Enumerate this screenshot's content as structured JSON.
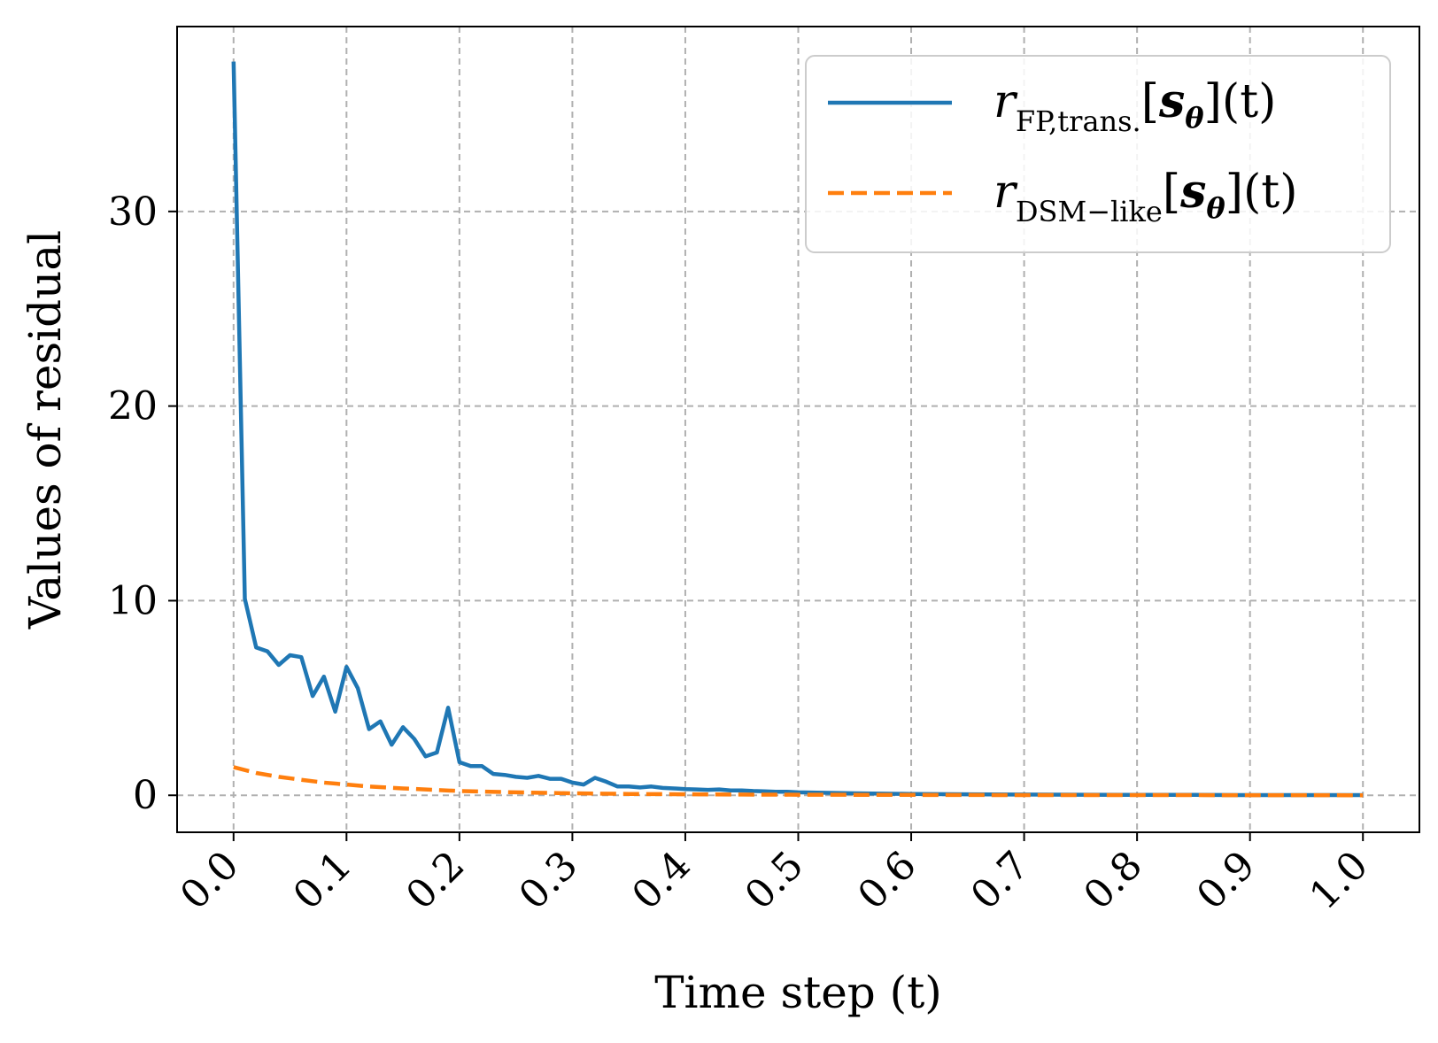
{
  "chart_data": {
    "type": "line",
    "xlabel": "Time step (t)",
    "ylabel": "Values of residual",
    "xlim": [
      -0.05,
      1.05
    ],
    "ylim": [
      -1.9,
      39.5
    ],
    "xticks": [
      0.0,
      0.1,
      0.2,
      0.3,
      0.4,
      0.5,
      0.6,
      0.7,
      0.8,
      0.9,
      1.0
    ],
    "xtick_labels": [
      "0.0",
      "0.1",
      "0.2",
      "0.3",
      "0.4",
      "0.5",
      "0.6",
      "0.7",
      "0.8",
      "0.9",
      "1.0"
    ],
    "yticks": [
      0,
      10,
      20,
      30
    ],
    "ytick_labels": [
      "0",
      "10",
      "20",
      "30"
    ],
    "grid": true,
    "legend_position": "top-right",
    "series": [
      {
        "name": "r_{FP,trans.}[s_θ](t)",
        "legend": {
          "base": "r",
          "sub": "FP,trans.",
          "bracket_open": "[",
          "bold": "s",
          "bold_sub": "θ",
          "bracket_close": "](t)"
        },
        "color": "#1f77b4",
        "style": "solid",
        "x": [
          0.0,
          0.01,
          0.02,
          0.03,
          0.04,
          0.05,
          0.06,
          0.07,
          0.08,
          0.09,
          0.1,
          0.11,
          0.12,
          0.13,
          0.14,
          0.15,
          0.16,
          0.17,
          0.18,
          0.19,
          0.2,
          0.21,
          0.22,
          0.23,
          0.24,
          0.25,
          0.26,
          0.27,
          0.28,
          0.29,
          0.3,
          0.31,
          0.32,
          0.33,
          0.34,
          0.35,
          0.36,
          0.37,
          0.38,
          0.39,
          0.4,
          0.41,
          0.42,
          0.43,
          0.44,
          0.45,
          0.46,
          0.47,
          0.48,
          0.49,
          0.5,
          0.55,
          0.6,
          0.65,
          0.7,
          0.75,
          0.8,
          0.85,
          0.9,
          0.95,
          1.0
        ],
        "y": [
          37.7,
          10.1,
          7.6,
          7.4,
          6.7,
          7.2,
          7.1,
          5.1,
          6.1,
          4.3,
          6.6,
          5.5,
          3.4,
          3.8,
          2.6,
          3.5,
          2.9,
          2.0,
          2.2,
          4.5,
          1.7,
          1.5,
          1.5,
          1.1,
          1.05,
          0.95,
          0.9,
          1.0,
          0.85,
          0.85,
          0.65,
          0.55,
          0.9,
          0.7,
          0.45,
          0.45,
          0.4,
          0.45,
          0.38,
          0.35,
          0.32,
          0.3,
          0.28,
          0.3,
          0.25,
          0.25,
          0.22,
          0.2,
          0.18,
          0.18,
          0.15,
          0.1,
          0.07,
          0.05,
          0.04,
          0.03,
          0.02,
          0.02,
          0.01,
          0.01,
          0.01
        ]
      },
      {
        "name": "r_{DSM−like}[s_θ](t)",
        "legend": {
          "base": "r",
          "sub": "DSM−like",
          "bracket_open": "[",
          "bold": "s",
          "bold_sub": "θ",
          "bracket_close": "](t)"
        },
        "color": "#ff7f0e",
        "style": "dashed",
        "x": [
          0.0,
          0.02,
          0.04,
          0.06,
          0.08,
          0.1,
          0.12,
          0.15,
          0.2,
          0.25,
          0.3,
          0.35,
          0.4,
          0.45,
          0.5,
          0.6,
          0.7,
          0.8,
          0.9,
          1.0
        ],
        "y": [
          1.45,
          1.15,
          0.95,
          0.8,
          0.65,
          0.55,
          0.45,
          0.35,
          0.22,
          0.15,
          0.1,
          0.07,
          0.05,
          0.04,
          0.03,
          0.02,
          0.01,
          0.01,
          0.005,
          0.0
        ]
      }
    ]
  }
}
